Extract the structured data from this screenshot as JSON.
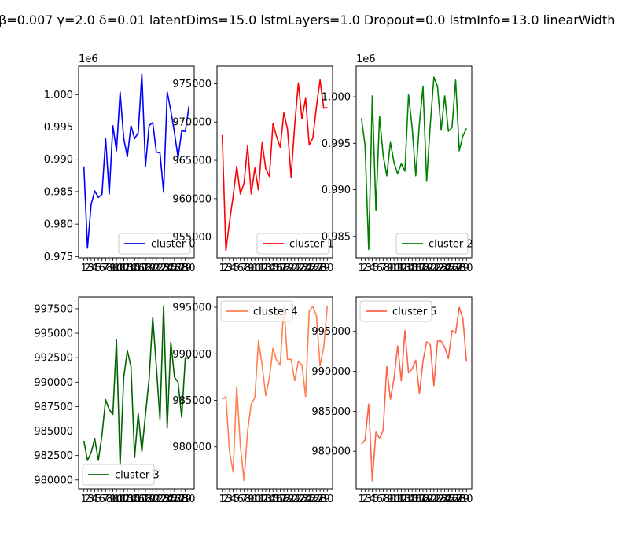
{
  "figure": {
    "title": "β=0.007 γ=2.0 δ=0.01 latentDims=15.0 lstmLayers=1.0 Dropout=0.0 lstmInfo=13.0 linearWidth"
  },
  "chart_data": [
    {
      "type": "line",
      "series": [
        {
          "name": "cluster 0",
          "color": "#0000ff"
        }
      ],
      "x": [
        1,
        2,
        3,
        4,
        5,
        6,
        7,
        8,
        9,
        10,
        11,
        12,
        13,
        14,
        15,
        16,
        17,
        18,
        19,
        20,
        21,
        22,
        23,
        24,
        25,
        26,
        27,
        28,
        29,
        30
      ],
      "values": [
        988900,
        976300,
        983000,
        985100,
        984100,
        984600,
        993200,
        984600,
        995200,
        991300,
        1000400,
        993200,
        990400,
        995200,
        993200,
        994100,
        1003200,
        988900,
        995200,
        995700,
        991100,
        991000,
        984900,
        1000400,
        997500,
        994100,
        990200,
        994400,
        994300,
        998200
      ],
      "ylim": [
        974800,
        1004400
      ],
      "yticks": [
        "0.975",
        "0.980",
        "0.985",
        "0.990",
        "0.995",
        "1.000"
      ],
      "ytick_values": [
        975000,
        980000,
        985000,
        990000,
        995000,
        1000000
      ],
      "offset_label": "1e6",
      "legend": "lower-right"
    },
    {
      "type": "line",
      "series": [
        {
          "name": "cluster 1",
          "color": "#ff0000"
        }
      ],
      "x": [
        1,
        2,
        3,
        4,
        5,
        6,
        7,
        8,
        9,
        10,
        11,
        12,
        13,
        14,
        15,
        16,
        17,
        18,
        19,
        20,
        21,
        22,
        23,
        24,
        25,
        26,
        27,
        28,
        29,
        30
      ],
      "values": [
        968300,
        953200,
        957000,
        960300,
        964200,
        960600,
        962000,
        966900,
        960600,
        964000,
        961100,
        967300,
        963900,
        962900,
        969800,
        968100,
        966700,
        971200,
        969100,
        962800,
        969600,
        975100,
        970400,
        973100,
        967000,
        967900,
        972000,
        975500,
        971800,
        971900
      ],
      "ylim": [
        952300,
        977300
      ],
      "yticks": [
        "955000",
        "960000",
        "965000",
        "970000",
        "975000"
      ],
      "ytick_values": [
        955000,
        960000,
        965000,
        970000,
        975000
      ],
      "legend": "lower-right"
    },
    {
      "type": "line",
      "series": [
        {
          "name": "cluster 2",
          "color": "#008000"
        }
      ],
      "x": [
        1,
        2,
        3,
        4,
        5,
        6,
        7,
        8,
        9,
        10,
        11,
        12,
        13,
        14,
        15,
        16,
        17,
        18,
        19,
        20,
        21,
        22,
        23,
        24,
        25,
        26,
        27,
        28,
        29,
        30
      ],
      "values": [
        997700,
        994800,
        983600,
        1000100,
        987800,
        997900,
        993700,
        991500,
        995100,
        992900,
        991700,
        992800,
        992000,
        1000200,
        996700,
        991500,
        997100,
        1001100,
        990900,
        997000,
        1002100,
        1001100,
        996400,
        1000100,
        996300,
        996700,
        1001800,
        994200,
        995800,
        996600
      ],
      "ylim": [
        982700,
        1003300
      ],
      "yticks": [
        "0.985",
        "0.990",
        "0.995",
        "1.000"
      ],
      "ytick_values": [
        985000,
        990000,
        995000,
        1000000
      ],
      "offset_label": "1e6",
      "legend": "lower-right"
    },
    {
      "type": "line",
      "series": [
        {
          "name": "cluster 3",
          "color": "#006400"
        }
      ],
      "x": [
        1,
        2,
        3,
        4,
        5,
        6,
        7,
        8,
        9,
        10,
        11,
        12,
        13,
        14,
        15,
        16,
        17,
        18,
        19,
        20,
        21,
        22,
        23,
        24,
        25,
        26,
        27,
        28,
        29,
        30
      ],
      "values": [
        984000,
        982000,
        982800,
        984200,
        982000,
        984600,
        988200,
        987200,
        986700,
        994300,
        981400,
        990500,
        993200,
        991600,
        982300,
        986800,
        982900,
        986700,
        990300,
        996600,
        991600,
        986200,
        997800,
        985300,
        994100,
        990500,
        990000,
        986400,
        992500,
        992400
      ],
      "ylim": [
        979100,
        998700
      ],
      "yticks": [
        "980000",
        "982500",
        "985000",
        "987500",
        "990000",
        "992500",
        "995000",
        "997500"
      ],
      "ytick_values": [
        980000,
        982500,
        985000,
        987500,
        990000,
        992500,
        995000,
        997500
      ],
      "legend": "lower-left"
    },
    {
      "type": "line",
      "series": [
        {
          "name": "cluster 4",
          "color": "#ff7f50"
        }
      ],
      "x": [
        1,
        2,
        3,
        4,
        5,
        6,
        7,
        8,
        9,
        10,
        11,
        12,
        13,
        14,
        15,
        16,
        17,
        18,
        19,
        20,
        21,
        22,
        23,
        24,
        25,
        26,
        27,
        28,
        29,
        30
      ],
      "values": [
        985100,
        985400,
        979500,
        977300,
        986500,
        980100,
        976400,
        981700,
        984600,
        985300,
        991400,
        988800,
        985500,
        987400,
        990600,
        989300,
        988800,
        995100,
        989400,
        989400,
        987100,
        989200,
        988800,
        985400,
        994600,
        995100,
        994100,
        988700,
        990700,
        995100
      ],
      "ylim": [
        975500,
        996100
      ],
      "yticks": [
        "980000",
        "985000",
        "990000",
        "995000"
      ],
      "ytick_values": [
        980000,
        985000,
        990000,
        995000
      ],
      "legend": "upper-left"
    },
    {
      "type": "line",
      "series": [
        {
          "name": "cluster 5",
          "color": "#ff6347"
        }
      ],
      "x": [
        1,
        2,
        3,
        4,
        5,
        6,
        7,
        8,
        9,
        10,
        11,
        12,
        13,
        14,
        15,
        16,
        17,
        18,
        19,
        20,
        21,
        22,
        23,
        24,
        25,
        26,
        27,
        28,
        29,
        30
      ],
      "values": [
        980900,
        981400,
        985900,
        976300,
        982400,
        981600,
        982600,
        990600,
        986500,
        989100,
        993200,
        988800,
        995100,
        989800,
        990300,
        991400,
        987200,
        991300,
        993700,
        993300,
        988200,
        993800,
        993800,
        993000,
        991600,
        995100,
        994800,
        998000,
        996600,
        991200
      ],
      "ylim": [
        975300,
        999300
      ],
      "yticks": [
        "980000",
        "985000",
        "990000",
        "995000"
      ],
      "ytick_values": [
        980000,
        985000,
        990000,
        995000
      ],
      "legend": "upper-left"
    }
  ]
}
